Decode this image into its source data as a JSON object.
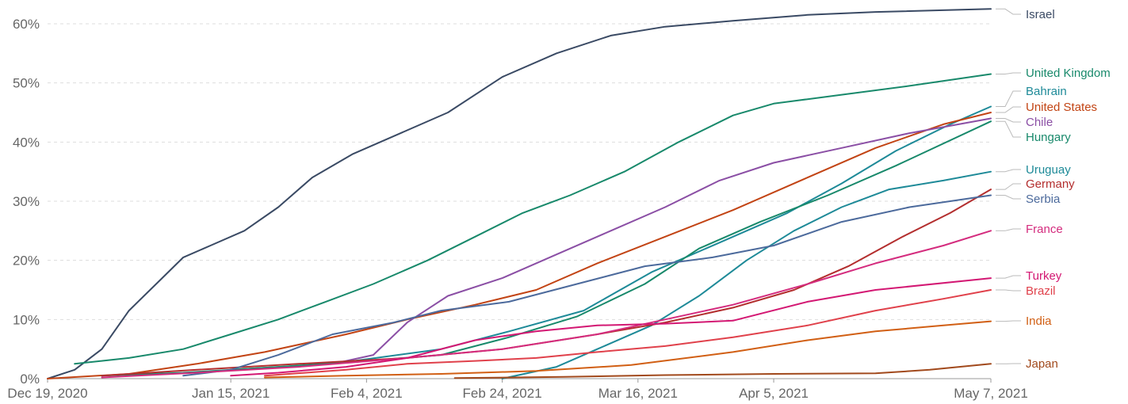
{
  "chart_data": {
    "type": "line",
    "title": "",
    "xlabel": "",
    "ylabel": "",
    "ylim": [
      0,
      65
    ],
    "grid": "horizontal dashed",
    "legend": "right-side inline labels",
    "x_ticks": [
      "Dec 19, 2020",
      "Jan 15, 2021",
      "Feb 4, 2021",
      "Feb 24, 2021",
      "Mar 16, 2021",
      "Apr 5, 2021",
      "May 7, 2021"
    ],
    "y_ticks": [
      "0%",
      "10%",
      "20%",
      "30%",
      "40%",
      "50%",
      "60%"
    ],
    "y_tick_values": [
      0,
      10,
      20,
      30,
      40,
      50,
      60
    ],
    "series": [
      {
        "name": "Israel",
        "color": "#3a4a64",
        "x": [
          "2020-12-19",
          "2020-12-23",
          "2020-12-27",
          "2020-12-31",
          "2021-01-04",
          "2021-01-08",
          "2021-01-12",
          "2021-01-17",
          "2021-01-22",
          "2021-01-27",
          "2021-02-02",
          "2021-02-08",
          "2021-02-16",
          "2021-02-24",
          "2021-03-04",
          "2021-03-12",
          "2021-03-20",
          "2021-03-30",
          "2021-04-10",
          "2021-04-20",
          "2021-05-07"
        ],
        "y": [
          0,
          1.5,
          5,
          11.5,
          16,
          20.5,
          22.5,
          25,
          29,
          34,
          38,
          41,
          45,
          51,
          55,
          58,
          59.5,
          60.5,
          61.5,
          62,
          62.5
        ]
      },
      {
        "name": "United Kingdom",
        "color": "#18896b",
        "x": [
          "2020-12-23",
          "2020-12-31",
          "2021-01-08",
          "2021-01-15",
          "2021-01-22",
          "2021-01-29",
          "2021-02-05",
          "2021-02-13",
          "2021-02-20",
          "2021-02-27",
          "2021-03-06",
          "2021-03-14",
          "2021-03-22",
          "2021-03-30",
          "2021-04-05",
          "2021-04-15",
          "2021-04-25",
          "2021-05-07"
        ],
        "y": [
          2.5,
          3.5,
          5,
          7.5,
          10,
          13,
          16,
          20,
          24,
          28,
          31,
          35,
          40,
          44.5,
          46.5,
          48,
          49.5,
          51.5
        ]
      },
      {
        "name": "Bahrain",
        "color": "#1e8a98",
        "x": [
          "2021-01-15",
          "2021-01-30",
          "2021-02-15",
          "2021-02-25",
          "2021-03-08",
          "2021-03-18",
          "2021-03-28",
          "2021-04-07",
          "2021-04-15",
          "2021-04-23",
          "2021-05-01",
          "2021-05-07"
        ],
        "y": [
          1.5,
          2.5,
          5,
          8,
          11.5,
          18,
          23,
          28,
          33,
          38.5,
          43,
          46
        ]
      },
      {
        "name": "United States",
        "color": "#c24414",
        "x": [
          "2020-12-19",
          "2020-12-31",
          "2021-01-10",
          "2021-01-20",
          "2021-02-01",
          "2021-02-10",
          "2021-02-20",
          "2021-03-01",
          "2021-03-10",
          "2021-03-20",
          "2021-03-30",
          "2021-04-10",
          "2021-04-20",
          "2021-04-30",
          "2021-05-07"
        ],
        "y": [
          0,
          0.8,
          2.5,
          4.5,
          7.5,
          10,
          12.5,
          15,
          19.5,
          24,
          28.5,
          34,
          39,
          43,
          45
        ]
      },
      {
        "name": "Chile",
        "color": "#8b4fa5",
        "x": [
          "2021-01-30",
          "2021-02-05",
          "2021-02-10",
          "2021-02-16",
          "2021-02-24",
          "2021-03-04",
          "2021-03-12",
          "2021-03-20",
          "2021-03-28",
          "2021-04-05",
          "2021-04-15",
          "2021-04-25",
          "2021-05-07"
        ],
        "y": [
          2.5,
          4,
          9.5,
          14,
          17,
          21,
          25,
          29,
          33.5,
          36.5,
          39,
          41.5,
          44
        ]
      },
      {
        "name": "Hungary",
        "color": "#18896b",
        "x": [
          "2020-12-27",
          "2021-01-08",
          "2021-01-22",
          "2021-02-04",
          "2021-02-15",
          "2021-02-25",
          "2021-03-07",
          "2021-03-17",
          "2021-03-25",
          "2021-04-03",
          "2021-04-13",
          "2021-04-23",
          "2021-05-07"
        ],
        "y": [
          0.5,
          1,
          2,
          3,
          4,
          7,
          10.5,
          16,
          22,
          26.5,
          31,
          36,
          43.5
        ]
      },
      {
        "name": "Uruguay",
        "color": "#1e8a98",
        "x": [
          "2021-02-24",
          "2021-03-04",
          "2021-03-10",
          "2021-03-18",
          "2021-03-25",
          "2021-04-01",
          "2021-04-08",
          "2021-04-15",
          "2021-04-22",
          "2021-04-30",
          "2021-05-07"
        ],
        "y": [
          0,
          2,
          5,
          9,
          14,
          20,
          25,
          29,
          32,
          33.5,
          35
        ]
      },
      {
        "name": "Germany",
        "color": "#b32e2e",
        "x": [
          "2020-12-27",
          "2021-01-10",
          "2021-01-25",
          "2021-02-10",
          "2021-02-24",
          "2021-03-10",
          "2021-03-20",
          "2021-03-30",
          "2021-04-08",
          "2021-04-16",
          "2021-04-24",
          "2021-05-01",
          "2021-05-07"
        ],
        "y": [
          0.5,
          1.5,
          2.5,
          3.5,
          5,
          7.5,
          9.5,
          12,
          15,
          19,
          24,
          28,
          32
        ]
      },
      {
        "name": "Serbia",
        "color": "#4c6a9c",
        "x": [
          "2021-01-08",
          "2021-01-15",
          "2021-01-22",
          "2021-01-30",
          "2021-02-08",
          "2021-02-15",
          "2021-02-25",
          "2021-03-07",
          "2021-03-17",
          "2021-03-27",
          "2021-04-05",
          "2021-04-15",
          "2021-04-25",
          "2021-05-07"
        ],
        "y": [
          0.5,
          1.5,
          4,
          7.5,
          9.5,
          11.5,
          13,
          16,
          19,
          20.5,
          22.5,
          26.5,
          29,
          31
        ]
      },
      {
        "name": "France",
        "color": "#d42c7e",
        "x": [
          "2020-12-27",
          "2021-01-10",
          "2021-01-25",
          "2021-02-10",
          "2021-02-24",
          "2021-03-10",
          "2021-03-20",
          "2021-03-30",
          "2021-04-10",
          "2021-04-20",
          "2021-04-30",
          "2021-05-07"
        ],
        "y": [
          0.2,
          1,
          2,
          3.5,
          5,
          7.5,
          10,
          12.5,
          16,
          19.5,
          22.5,
          25
        ]
      },
      {
        "name": "Turkey",
        "color": "#d31873",
        "x": [
          "2021-01-15",
          "2021-01-22",
          "2021-02-01",
          "2021-02-10",
          "2021-02-20",
          "2021-03-01",
          "2021-03-10",
          "2021-03-20",
          "2021-03-30",
          "2021-04-10",
          "2021-04-20",
          "2021-05-07"
        ],
        "y": [
          0.5,
          1,
          2,
          3.5,
          6.5,
          8,
          9,
          9.3,
          9.8,
          13,
          15,
          17
        ]
      },
      {
        "name": "Brazil",
        "color": "#e0414b",
        "x": [
          "2021-01-20",
          "2021-02-01",
          "2021-02-10",
          "2021-02-20",
          "2021-03-01",
          "2021-03-10",
          "2021-03-20",
          "2021-03-30",
          "2021-04-10",
          "2021-04-20",
          "2021-04-30",
          "2021-05-07"
        ],
        "y": [
          0.5,
          1.5,
          2.5,
          3,
          3.5,
          4.5,
          5.5,
          7,
          9,
          11.5,
          13.5,
          15
        ]
      },
      {
        "name": "India",
        "color": "#d15f14",
        "x": [
          "2021-01-20",
          "2021-02-01",
          "2021-02-15",
          "2021-03-01",
          "2021-03-15",
          "2021-03-30",
          "2021-04-10",
          "2021-04-20",
          "2021-04-30",
          "2021-05-07"
        ],
        "y": [
          0.2,
          0.5,
          0.8,
          1.3,
          2.3,
          4.5,
          6.5,
          8,
          9,
          9.7
        ]
      },
      {
        "name": "Japan",
        "color": "#a1491c",
        "x": [
          "2021-02-17",
          "2021-03-05",
          "2021-03-20",
          "2021-04-05",
          "2021-04-20",
          "2021-04-28",
          "2021-05-07"
        ],
        "y": [
          0.1,
          0.3,
          0.6,
          0.8,
          0.9,
          1.5,
          2.5
        ]
      }
    ]
  }
}
